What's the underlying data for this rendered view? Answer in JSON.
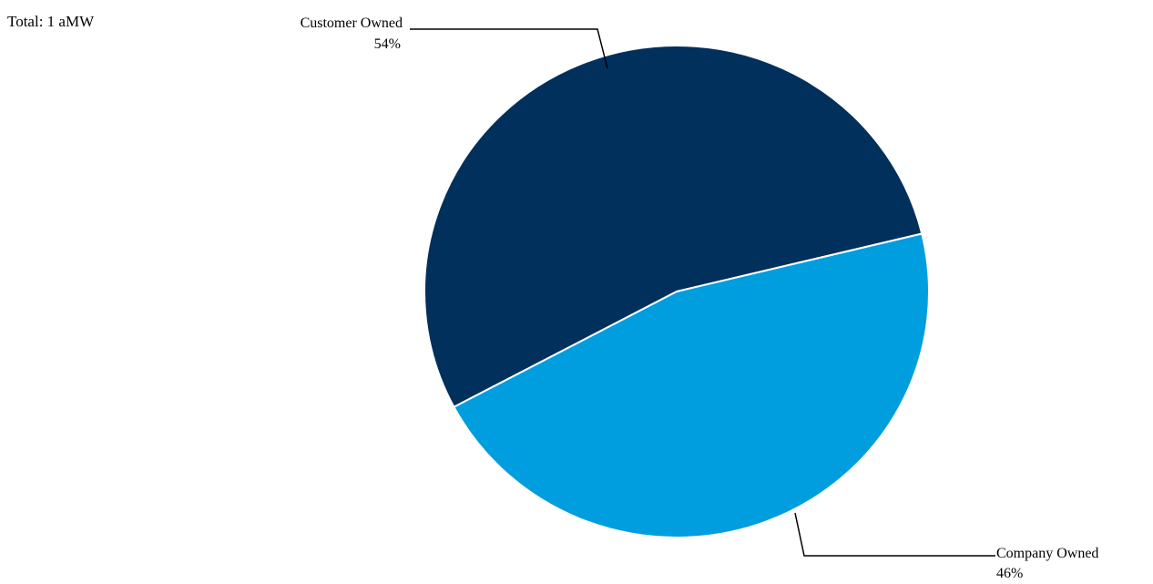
{
  "header": {
    "total_text": "Total: 1 aMW"
  },
  "chart_data": {
    "type": "pie",
    "title": "",
    "slices": [
      {
        "label": "Customer Owned",
        "value_label": "54%",
        "value": 54,
        "color": "#00305b"
      },
      {
        "label": "Company Owned",
        "value_label": "46%",
        "value": 46,
        "color": "#009ddf"
      }
    ],
    "start_direction": "down-left",
    "label_placement": [
      "top-left",
      "bottom-right"
    ],
    "legend": "none"
  }
}
